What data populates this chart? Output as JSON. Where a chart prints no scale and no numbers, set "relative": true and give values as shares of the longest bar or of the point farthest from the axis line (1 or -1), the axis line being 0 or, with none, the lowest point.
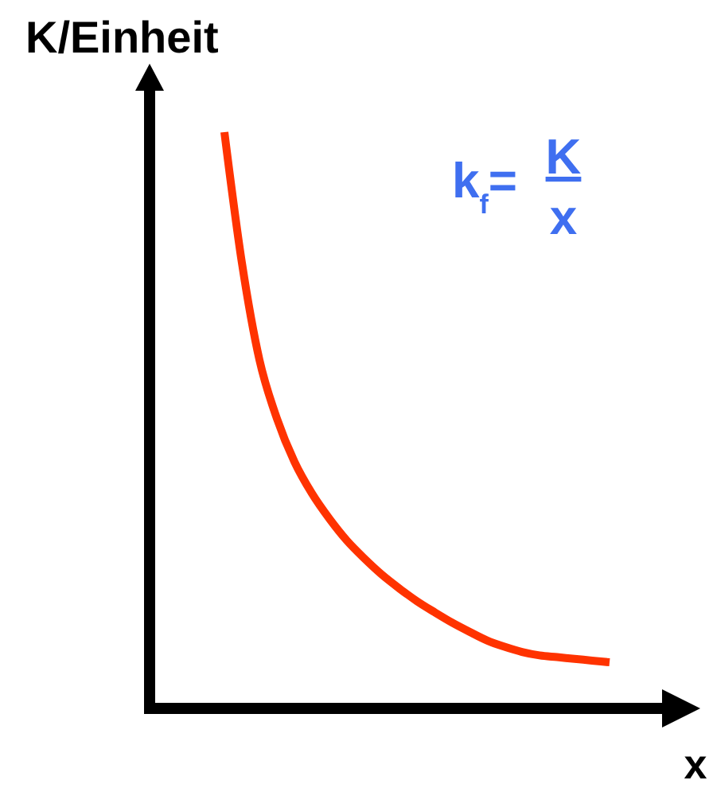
{
  "chart_data": {
    "type": "line",
    "xlabel": "x",
    "ylabel": "K/Einheit",
    "annotations": [
      "k$_{f}$=",
      "K",
      "x"
    ],
    "categories": [
      null,
      null,
      null,
      null,
      null,
      null,
      null,
      null,
      null,
      null,
      null,
      null,
      null,
      null,
      null,
      null,
      null,
      null,
      null,
      null,
      null,
      null,
      null
    ],
    "relative": true,
    "series": [
      {
        "color": "#ff3300",
        "values": [
          1,
          0.773,
          0.605,
          0.503,
          0.428,
          0.373,
          0.329,
          0.291,
          0.26,
          0.232,
          0.208,
          0.186,
          0.167,
          0.149,
          0.133,
          0.118,
          0.107,
          0.098,
          0.092,
          0.089,
          0.086,
          0.083,
          0.08
        ]
      }
    ]
  }
}
